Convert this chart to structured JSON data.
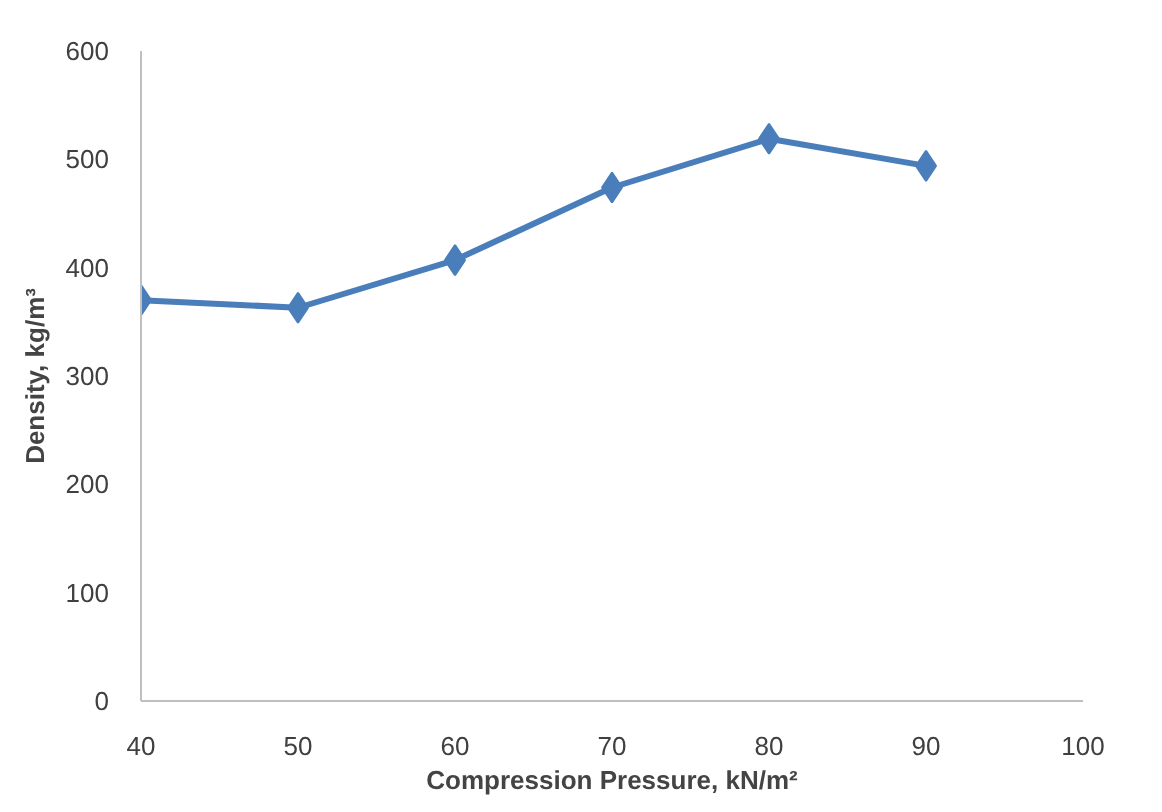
{
  "chart_data": {
    "type": "line",
    "xlabel": "Compression Pressure, kN/m²",
    "ylabel": "Density, kg/m³",
    "x": [
      40,
      50,
      60,
      70,
      80,
      90
    ],
    "series": [
      {
        "color": "#4a7ebb",
        "values": [
          370,
          363,
          407,
          474,
          519,
          494
        ]
      }
    ],
    "xlim": [
      40,
      100
    ],
    "xticks": [
      40,
      50,
      60,
      70,
      80,
      90,
      100
    ],
    "ylim": [
      0,
      600
    ],
    "yticks": [
      0,
      100,
      200,
      300,
      400,
      500,
      600
    ],
    "grid": false,
    "marker": "diamond",
    "line_style": "solid"
  }
}
